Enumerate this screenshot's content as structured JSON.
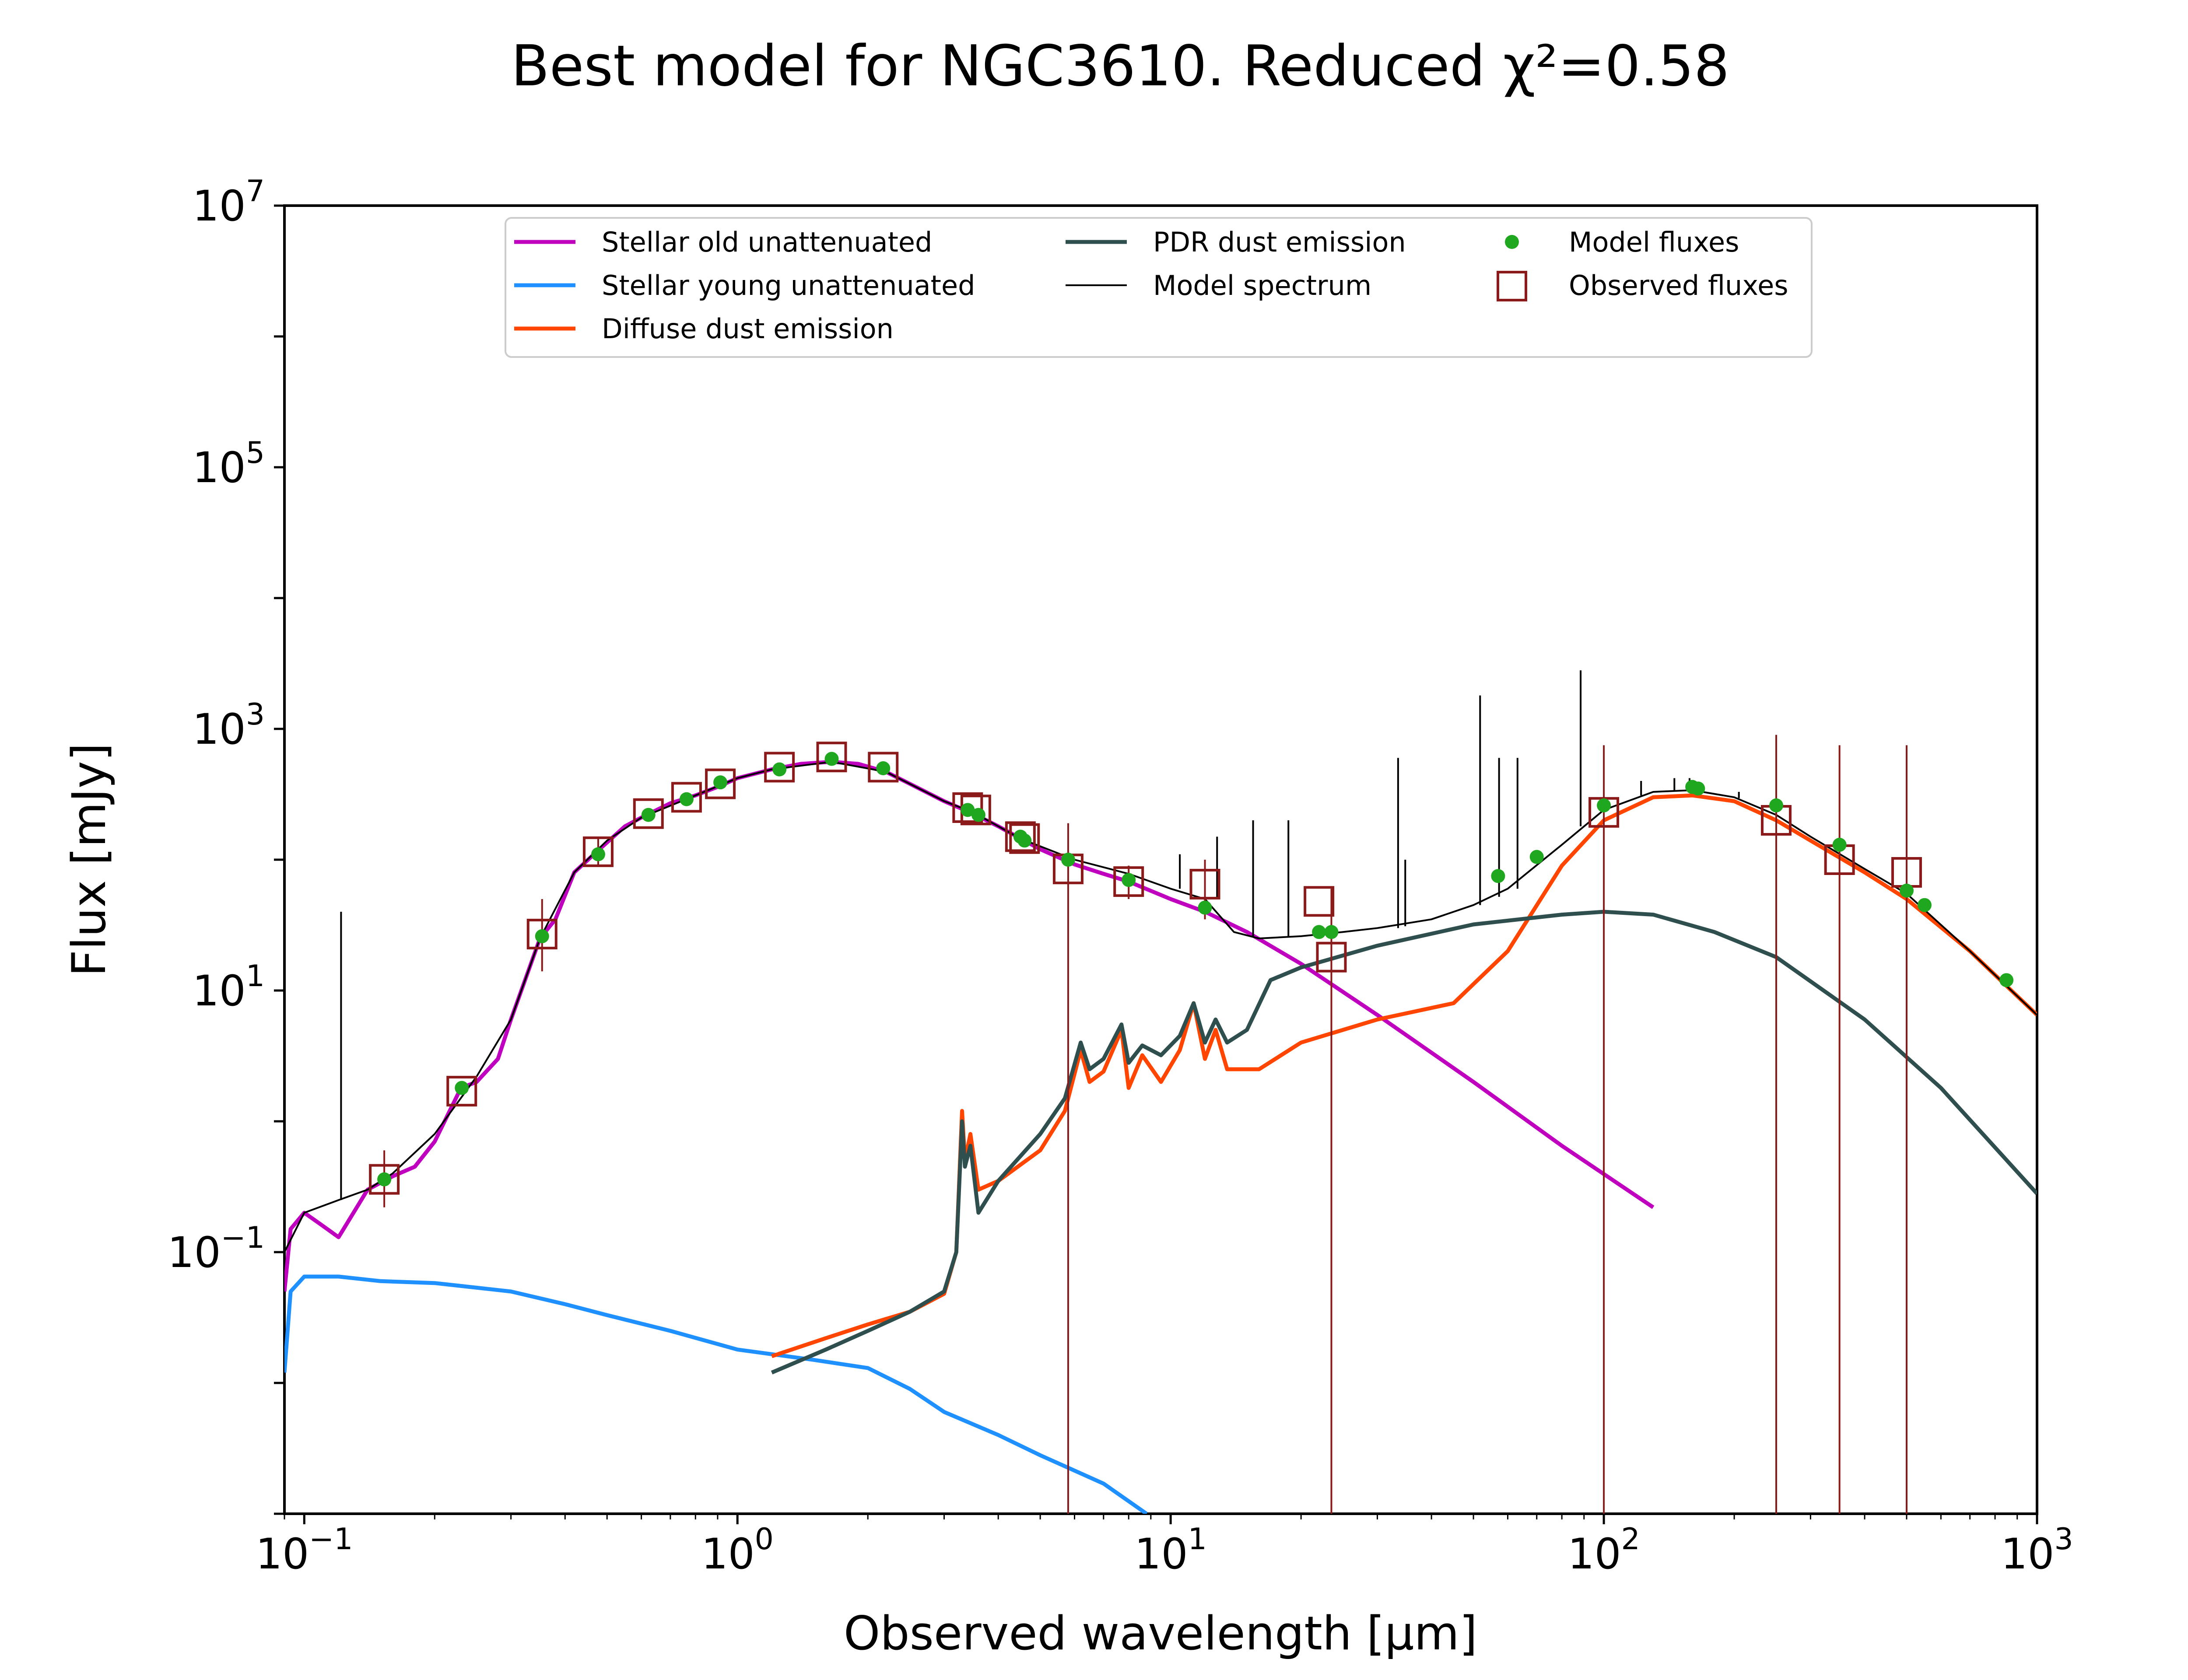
{
  "chart_data": {
    "type": "line",
    "title": "Best model for NGC3610. Reduced χ²=0.58",
    "xlabel": "Observed wavelength [μm]",
    "ylabel": "Flux [mJy]",
    "xscale": "log",
    "yscale": "log",
    "xlim": [
      0.09,
      1000
    ],
    "ylim": [
      0.001,
      10000000
    ],
    "x_tick_labels": [
      {
        "base": "10",
        "exp": "−1",
        "value": 0.1
      },
      {
        "base": "10",
        "exp": "0",
        "value": 1
      },
      {
        "base": "10",
        "exp": "1",
        "value": 10
      },
      {
        "base": "10",
        "exp": "2",
        "value": 100
      },
      {
        "base": "10",
        "exp": "3",
        "value": 1000
      }
    ],
    "y_tick_labels": [
      {
        "base": "10",
        "exp": "−1",
        "value": 0.1
      },
      {
        "base": "10",
        "exp": "1",
        "value": 10
      },
      {
        "base": "10",
        "exp": "3",
        "value": 1000
      },
      {
        "base": "10",
        "exp": "5",
        "value": 100000
      },
      {
        "base": "10",
        "exp": "7",
        "value": 10000000
      }
    ],
    "grid": false,
    "legend_position": "top",
    "series": [
      {
        "name": "Stellar old unattenuated",
        "color": "#bf00bf",
        "points": [
          [
            0.09,
            0.05
          ],
          [
            0.093,
            0.15
          ],
          [
            0.1,
            0.2
          ],
          [
            0.11,
            0.16
          ],
          [
            0.12,
            0.13
          ],
          [
            0.14,
            0.3
          ],
          [
            0.16,
            0.38
          ],
          [
            0.18,
            0.45
          ],
          [
            0.2,
            0.7
          ],
          [
            0.23,
            1.8
          ],
          [
            0.25,
            2.0
          ],
          [
            0.28,
            3.0
          ],
          [
            0.3,
            6
          ],
          [
            0.35,
            25
          ],
          [
            0.38,
            35
          ],
          [
            0.42,
            80
          ],
          [
            0.48,
            120
          ],
          [
            0.55,
            180
          ],
          [
            0.6,
            210
          ],
          [
            0.7,
            270
          ],
          [
            0.8,
            310
          ],
          [
            0.9,
            360
          ],
          [
            1.0,
            420
          ],
          [
            1.2,
            490
          ],
          [
            1.4,
            540
          ],
          [
            1.65,
            560
          ],
          [
            1.9,
            540
          ],
          [
            2.2,
            470
          ],
          [
            2.5,
            380
          ],
          [
            3.0,
            280
          ],
          [
            3.5,
            225
          ],
          [
            4.0,
            180
          ],
          [
            5.0,
            120
          ],
          [
            6.0,
            92
          ],
          [
            7.0,
            78
          ],
          [
            8.0,
            68
          ],
          [
            10,
            50
          ],
          [
            12,
            40
          ],
          [
            15,
            28
          ],
          [
            20,
            16
          ],
          [
            30,
            6.5
          ],
          [
            50,
            2.0
          ],
          [
            80,
            0.65
          ],
          [
            130,
            0.22
          ]
        ]
      },
      {
        "name": "Stellar young unattenuated",
        "color": "#1e90ff",
        "points": [
          [
            0.09,
            0.012
          ],
          [
            0.093,
            0.05
          ],
          [
            0.1,
            0.065
          ],
          [
            0.12,
            0.065
          ],
          [
            0.15,
            0.06
          ],
          [
            0.2,
            0.058
          ],
          [
            0.3,
            0.05
          ],
          [
            0.4,
            0.04
          ],
          [
            0.5,
            0.033
          ],
          [
            0.7,
            0.025
          ],
          [
            1.0,
            0.018
          ],
          [
            1.5,
            0.015
          ],
          [
            2.0,
            0.013
          ],
          [
            2.5,
            0.009
          ],
          [
            3.0,
            0.006
          ],
          [
            4.0,
            0.004
          ],
          [
            5.0,
            0.0028
          ],
          [
            7.0,
            0.0017
          ],
          [
            8.8,
            0.001
          ]
        ]
      },
      {
        "name": "Diffuse dust emission",
        "color": "#ff4500",
        "points": [
          [
            1.2,
            0.016
          ],
          [
            1.6,
            0.022
          ],
          [
            2.0,
            0.028
          ],
          [
            2.5,
            0.035
          ],
          [
            3.0,
            0.048
          ],
          [
            3.2,
            0.1
          ],
          [
            3.3,
            1.2
          ],
          [
            3.35,
            0.5
          ],
          [
            3.45,
            0.8
          ],
          [
            3.6,
            0.3
          ],
          [
            4.0,
            0.35
          ],
          [
            5.0,
            0.6
          ],
          [
            5.7,
            1.2
          ],
          [
            6.2,
            3.5
          ],
          [
            6.5,
            2.0
          ],
          [
            7.0,
            2.4
          ],
          [
            7.7,
            5.0
          ],
          [
            8.0,
            1.8
          ],
          [
            8.6,
            3.2
          ],
          [
            9.5,
            2.0
          ],
          [
            10.5,
            3.5
          ],
          [
            11.3,
            8.0
          ],
          [
            12.0,
            3.0
          ],
          [
            12.7,
            5.0
          ],
          [
            13.5,
            2.5
          ],
          [
            16,
            2.5
          ],
          [
            20,
            4.0
          ],
          [
            30,
            6.0
          ],
          [
            45,
            8.0
          ],
          [
            60,
            20
          ],
          [
            80,
            90
          ],
          [
            100,
            200
          ],
          [
            130,
            300
          ],
          [
            160,
            310
          ],
          [
            200,
            280
          ],
          [
            250,
            200
          ],
          [
            300,
            140
          ],
          [
            400,
            80
          ],
          [
            500,
            50
          ],
          [
            700,
            20
          ],
          [
            1000,
            6.5
          ]
        ]
      },
      {
        "name": "PDR dust emission",
        "color": "#2f4f4f",
        "points": [
          [
            1.2,
            0.012
          ],
          [
            1.6,
            0.018
          ],
          [
            2.0,
            0.025
          ],
          [
            2.5,
            0.035
          ],
          [
            3.0,
            0.05
          ],
          [
            3.2,
            0.1
          ],
          [
            3.3,
            1.0
          ],
          [
            3.35,
            0.45
          ],
          [
            3.45,
            0.65
          ],
          [
            3.6,
            0.2
          ],
          [
            4.0,
            0.35
          ],
          [
            5.0,
            0.8
          ],
          [
            5.7,
            1.5
          ],
          [
            6.2,
            4.0
          ],
          [
            6.5,
            2.5
          ],
          [
            7.0,
            3.0
          ],
          [
            7.7,
            5.5
          ],
          [
            8.0,
            2.8
          ],
          [
            8.6,
            3.8
          ],
          [
            9.5,
            3.2
          ],
          [
            10.5,
            4.5
          ],
          [
            11.3,
            8.0
          ],
          [
            12.0,
            4.0
          ],
          [
            12.7,
            6.0
          ],
          [
            13.5,
            4.0
          ],
          [
            15,
            5.0
          ],
          [
            17,
            12
          ],
          [
            20,
            15
          ],
          [
            30,
            22
          ],
          [
            50,
            32
          ],
          [
            80,
            38
          ],
          [
            100,
            40
          ],
          [
            130,
            38
          ],
          [
            180,
            28
          ],
          [
            250,
            18
          ],
          [
            400,
            6.0
          ],
          [
            600,
            1.8
          ],
          [
            1000,
            0.28
          ]
        ]
      },
      {
        "name": "Model spectrum",
        "color": "#000000",
        "points": [
          [
            0.09,
            0.1
          ],
          [
            0.1,
            0.2
          ],
          [
            0.12,
            0.25
          ],
          [
            0.14,
            0.3
          ],
          [
            0.16,
            0.4
          ],
          [
            0.2,
            0.8
          ],
          [
            0.25,
            2.2
          ],
          [
            0.3,
            6
          ],
          [
            0.35,
            25
          ],
          [
            0.42,
            80
          ],
          [
            0.5,
            140
          ],
          [
            0.6,
            210
          ],
          [
            0.8,
            310
          ],
          [
            1.0,
            420
          ],
          [
            1.2,
            490
          ],
          [
            1.65,
            560
          ],
          [
            2.2,
            470
          ],
          [
            3.0,
            280
          ],
          [
            3.5,
            230
          ],
          [
            4.5,
            145
          ],
          [
            6.0,
            100
          ],
          [
            8.0,
            78
          ],
          [
            10,
            60
          ],
          [
            12,
            50
          ],
          [
            14,
            28
          ],
          [
            16,
            25
          ],
          [
            20,
            26
          ],
          [
            25,
            28
          ],
          [
            30,
            30
          ],
          [
            40,
            35
          ],
          [
            50,
            45
          ],
          [
            60,
            60
          ],
          [
            80,
            130
          ],
          [
            100,
            240
          ],
          [
            130,
            330
          ],
          [
            160,
            340
          ],
          [
            200,
            300
          ],
          [
            250,
            220
          ],
          [
            300,
            150
          ],
          [
            400,
            85
          ],
          [
            500,
            55
          ],
          [
            700,
            20
          ],
          [
            1000,
            6.5
          ]
        ]
      }
    ],
    "emission_lines": [
      {
        "x": 0.1216,
        "y_from": 0.25,
        "y_to": 40
      },
      {
        "x": 10.5,
        "y_from": 60,
        "y_to": 110
      },
      {
        "x": 12.8,
        "y_from": 50,
        "y_to": 150
      },
      {
        "x": 15.5,
        "y_from": 26,
        "y_to": 200
      },
      {
        "x": 18.7,
        "y_from": 26,
        "y_to": 200
      },
      {
        "x": 33.5,
        "y_from": 30,
        "y_to": 600
      },
      {
        "x": 34.8,
        "y_from": 31,
        "y_to": 100
      },
      {
        "x": 51.8,
        "y_from": 45,
        "y_to": 1800
      },
      {
        "x": 57.3,
        "y_from": 52,
        "y_to": 600
      },
      {
        "x": 63.2,
        "y_from": 60,
        "y_to": 600
      },
      {
        "x": 88.4,
        "y_from": 180,
        "y_to": 2800
      },
      {
        "x": 121.9,
        "y_from": 310,
        "y_to": 400
      },
      {
        "x": 145.5,
        "y_from": 335,
        "y_to": 420
      },
      {
        "x": 157.7,
        "y_from": 340,
        "y_to": 420
      },
      {
        "x": 205,
        "y_from": 295,
        "y_to": 330
      }
    ],
    "model_fluxes": {
      "name": "Model fluxes",
      "color": "#1fa81f",
      "points": [
        [
          0.153,
          0.36
        ],
        [
          0.231,
          1.8
        ],
        [
          0.354,
          26
        ],
        [
          0.477,
          110
        ],
        [
          0.623,
          220
        ],
        [
          0.763,
          290
        ],
        [
          0.913,
          390
        ],
        [
          1.25,
          490
        ],
        [
          1.65,
          590
        ],
        [
          2.17,
          500
        ],
        [
          3.4,
          240
        ],
        [
          3.6,
          220
        ],
        [
          4.5,
          150
        ],
        [
          4.6,
          140
        ],
        [
          5.8,
          100
        ],
        [
          8.0,
          70
        ],
        [
          12.0,
          43
        ],
        [
          22.0,
          28
        ],
        [
          23.5,
          28
        ],
        [
          57,
          75
        ],
        [
          70,
          105
        ],
        [
          100,
          260
        ],
        [
          160,
          360
        ],
        [
          165,
          350
        ],
        [
          250,
          260
        ],
        [
          350,
          130
        ],
        [
          500,
          58
        ],
        [
          550,
          45
        ],
        [
          850,
          12
        ]
      ]
    },
    "observed_fluxes": {
      "name": "Observed fluxes",
      "color": "#8b1a1a",
      "points": [
        [
          0.153,
          0.36
        ],
        [
          0.231,
          1.7
        ],
        [
          0.354,
          27
        ],
        [
          0.477,
          115
        ],
        [
          0.623,
          225
        ],
        [
          0.763,
          300
        ],
        [
          0.913,
          380
        ],
        [
          1.25,
          510
        ],
        [
          1.65,
          610
        ],
        [
          2.17,
          510
        ],
        [
          3.4,
          250
        ],
        [
          3.55,
          240
        ],
        [
          4.5,
          150
        ],
        [
          4.6,
          145
        ],
        [
          5.8,
          85
        ],
        [
          8.0,
          68
        ],
        [
          12.0,
          65
        ],
        [
          22.0,
          48
        ],
        [
          23.5,
          18
        ],
        [
          100,
          230
        ],
        [
          250,
          200
        ],
        [
          350,
          100
        ],
        [
          500,
          80
        ]
      ]
    },
    "observed_error_bars": [
      {
        "x": 0.153,
        "lo": 0.22,
        "hi": 0.6
      },
      {
        "x": 0.354,
        "lo": 14,
        "hi": 50
      },
      {
        "x": 0.477,
        "lo": 90,
        "hi": 150
      },
      {
        "x": 5.8,
        "lo": 0.001,
        "hi": 190
      },
      {
        "x": 8.0,
        "lo": 50,
        "hi": 90
      },
      {
        "x": 12.0,
        "lo": 35,
        "hi": 100
      },
      {
        "x": 23.5,
        "lo": 0.001,
        "hi": 60
      },
      {
        "x": 100,
        "lo": 0.001,
        "hi": 750
      },
      {
        "x": 250,
        "lo": 0.001,
        "hi": 900
      },
      {
        "x": 350,
        "lo": 0.001,
        "hi": 750
      },
      {
        "x": 500,
        "lo": 0.001,
        "hi": 750
      }
    ]
  },
  "legend": {
    "items": [
      {
        "label": "Stellar old unattenuated",
        "kind": "line",
        "color": "#bf00bf"
      },
      {
        "label": "Stellar young unattenuated",
        "kind": "line",
        "color": "#1e90ff"
      },
      {
        "label": "Diffuse dust emission",
        "kind": "line",
        "color": "#ff4500"
      },
      {
        "label": "PDR dust emission",
        "kind": "line",
        "color": "#2f4f4f"
      },
      {
        "label": "Model spectrum",
        "kind": "thinline",
        "color": "#000000"
      },
      {
        "label": "Model fluxes",
        "kind": "dot",
        "color": "#1fa81f"
      },
      {
        "label": "Observed fluxes",
        "kind": "square",
        "color": "#8b1a1a"
      }
    ]
  }
}
